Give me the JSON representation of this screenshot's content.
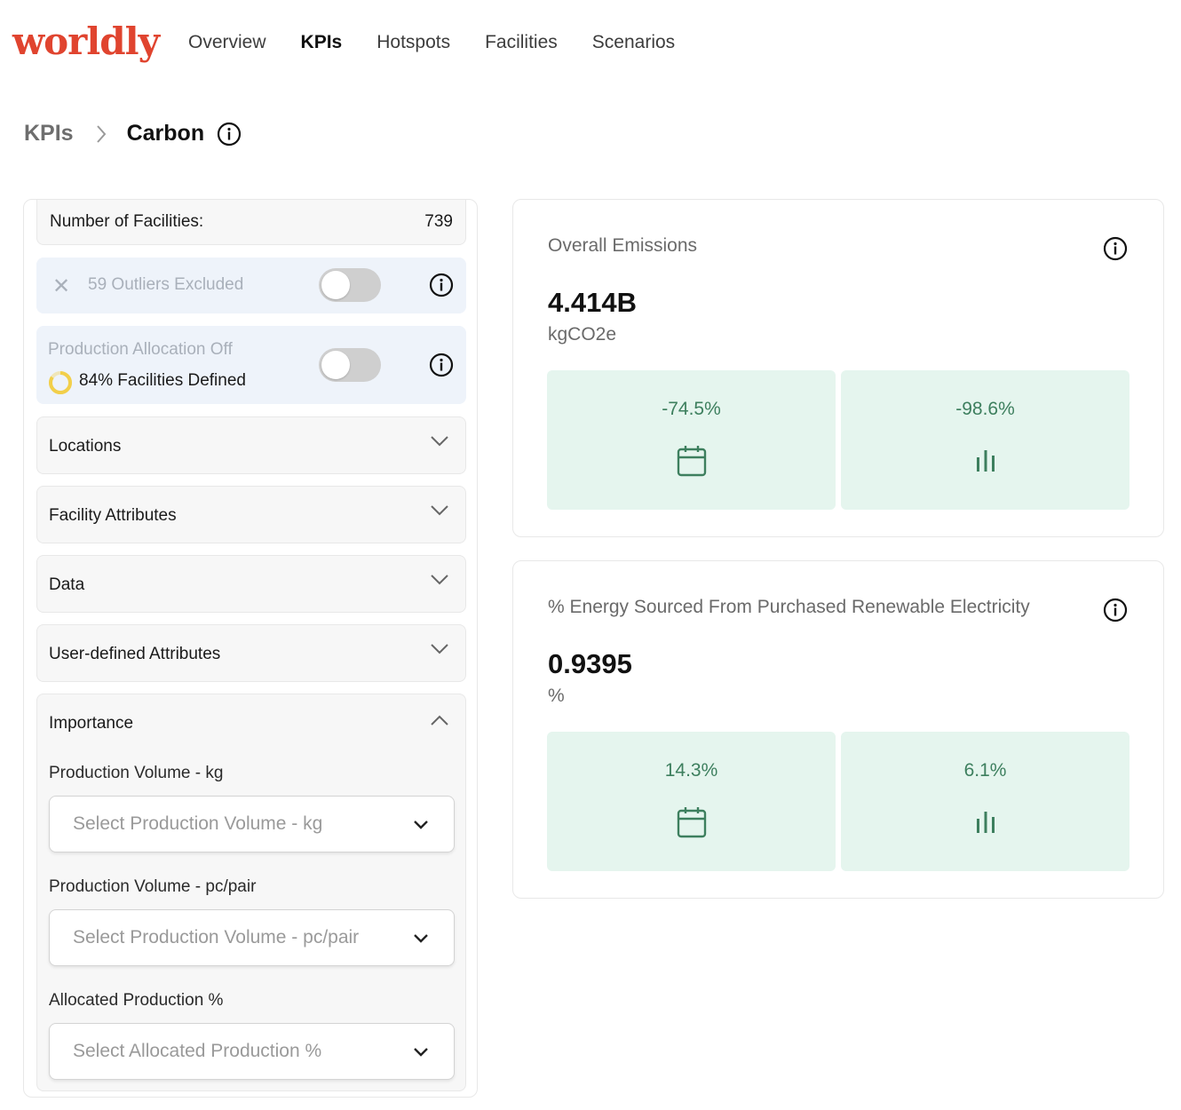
{
  "header": {
    "logo": "worldly",
    "nav": [
      {
        "label": "Overview",
        "active": false
      },
      {
        "label": "KPIs",
        "active": true
      },
      {
        "label": "Hotspots",
        "active": false
      },
      {
        "label": "Facilities",
        "active": false
      },
      {
        "label": "Scenarios",
        "active": false
      }
    ]
  },
  "breadcrumb": {
    "root": "KPIs",
    "current": "Carbon"
  },
  "filters": {
    "facilities_label": "Number of Facilities:",
    "facilities_count": "739",
    "outliers_label": "59 Outliers Excluded",
    "outliers_toggle_on": false,
    "allocation_label": "Production Allocation Off",
    "allocation_toggle_on": false,
    "facilities_defined": "84% Facilities Defined",
    "facilities_defined_fraction": 0.84,
    "sections": [
      {
        "title": "Locations",
        "expanded": false
      },
      {
        "title": "Facility Attributes",
        "expanded": false
      },
      {
        "title": "Data",
        "expanded": false
      },
      {
        "title": "User-defined Attributes",
        "expanded": false
      }
    ],
    "importance": {
      "title": "Importance",
      "expanded": true,
      "fields": [
        {
          "label": "Production Volume - kg",
          "placeholder": "Select Production Volume - kg"
        },
        {
          "label": "Production Volume - pc/pair",
          "placeholder": "Select Production Volume - pc/pair"
        },
        {
          "label": "Allocated Production %",
          "placeholder": "Select Allocated Production %"
        }
      ]
    }
  },
  "kpis": [
    {
      "title": "Overall Emissions",
      "value": "4.414B",
      "unit": "kgCO2e",
      "tiles": [
        {
          "value": "-74.5%",
          "icon": "calendar-icon"
        },
        {
          "value": "-98.6%",
          "icon": "bar-chart-icon"
        }
      ]
    },
    {
      "title": "% Energy Sourced From Purchased Renewable Electricity",
      "value": "0.9395",
      "unit": "%",
      "tiles": [
        {
          "value": "14.3%",
          "icon": "calendar-icon"
        },
        {
          "value": "6.1%",
          "icon": "bar-chart-icon"
        }
      ]
    }
  ],
  "colors": {
    "brand": "#e0442f",
    "tile_bg": "#e5f5ee",
    "tile_text": "#3d7f5e",
    "filter_bg": "#eef3fa"
  }
}
